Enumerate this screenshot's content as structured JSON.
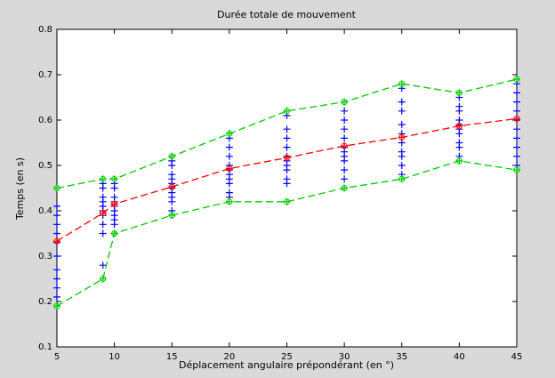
{
  "chart_data": {
    "type": "line",
    "title": "Durée totale de mouvement",
    "x_label": "Déplacement angulaire prépondérant (en °)",
    "y_label": "Temps (en s)",
    "xlim": [
      5,
      45
    ],
    "xticks": [
      5,
      10,
      15,
      20,
      25,
      30,
      35,
      40,
      45
    ],
    "ylim": [
      0.1,
      0.8
    ],
    "yticks": [
      0.1,
      0.2,
      0.3,
      0.4,
      0.5,
      0.6,
      0.7,
      0.8
    ],
    "series": [
      {
        "color": "#0000ff",
        "style": "scatter",
        "x": [
          5,
          5,
          5,
          5,
          5,
          5,
          5,
          5,
          5,
          5,
          9,
          9,
          9,
          9,
          9,
          9,
          9,
          9,
          9,
          9,
          10,
          10,
          10,
          10,
          10,
          10,
          10,
          10,
          10,
          10,
          15,
          15,
          15,
          15,
          15,
          15,
          15,
          15,
          15,
          15,
          20,
          20,
          20,
          20,
          20,
          20,
          20,
          20,
          20,
          20,
          25,
          25,
          25,
          25,
          25,
          25,
          25,
          25,
          25,
          25,
          30,
          30,
          30,
          30,
          30,
          30,
          30,
          30,
          30,
          30,
          35,
          35,
          35,
          35,
          35,
          35,
          35,
          35,
          35,
          35,
          40,
          40,
          40,
          40,
          40,
          40,
          40,
          40,
          40,
          40,
          45,
          45,
          45,
          45,
          45,
          45,
          45,
          45,
          45,
          45
        ],
        "values": [
          0.21,
          0.23,
          0.25,
          0.27,
          0.3,
          0.33,
          0.35,
          0.37,
          0.39,
          0.41,
          0.28,
          0.35,
          0.37,
          0.39,
          0.4,
          0.41,
          0.42,
          0.43,
          0.45,
          0.46,
          0.35,
          0.37,
          0.38,
          0.39,
          0.4,
          0.41,
          0.42,
          0.43,
          0.45,
          0.46,
          0.4,
          0.42,
          0.43,
          0.44,
          0.45,
          0.46,
          0.47,
          0.48,
          0.5,
          0.51,
          0.43,
          0.44,
          0.46,
          0.47,
          0.48,
          0.49,
          0.5,
          0.52,
          0.54,
          0.56,
          0.46,
          0.47,
          0.49,
          0.5,
          0.51,
          0.52,
          0.54,
          0.56,
          0.58,
          0.61,
          0.47,
          0.49,
          0.51,
          0.52,
          0.53,
          0.54,
          0.56,
          0.58,
          0.6,
          0.62,
          0.48,
          0.5,
          0.52,
          0.53,
          0.55,
          0.57,
          0.59,
          0.62,
          0.64,
          0.67,
          0.52,
          0.54,
          0.55,
          0.57,
          0.58,
          0.59,
          0.6,
          0.62,
          0.63,
          0.65,
          0.5,
          0.52,
          0.54,
          0.56,
          0.58,
          0.6,
          0.62,
          0.64,
          0.66,
          0.68
        ]
      },
      {
        "color": "#ff0000",
        "style": "dashed",
        "x": [
          5,
          9,
          10,
          15,
          20,
          25,
          30,
          35,
          40,
          45
        ],
        "values": [
          0.333,
          0.395,
          0.415,
          0.453,
          0.493,
          0.517,
          0.543,
          0.562,
          0.587,
          0.603
        ]
      },
      {
        "color": "#00cc00",
        "style": "dashed",
        "x": [
          5,
          9,
          10,
          15,
          20,
          25,
          30,
          35,
          40,
          45
        ],
        "values": [
          0.45,
          0.47,
          0.47,
          0.52,
          0.57,
          0.62,
          0.64,
          0.68,
          0.66,
          0.69
        ]
      },
      {
        "color": "#00cc00",
        "style": "dashed",
        "x": [
          5,
          9,
          10,
          15,
          20,
          25,
          30,
          35,
          40,
          45
        ],
        "values": [
          0.19,
          0.25,
          0.35,
          0.39,
          0.42,
          0.42,
          0.45,
          0.47,
          0.51,
          0.49
        ]
      }
    ]
  }
}
